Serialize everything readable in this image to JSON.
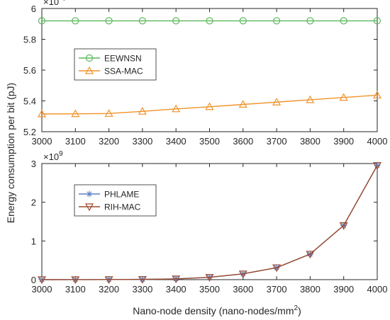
{
  "figure": {
    "ylabel": "Energy consumption per bit (pJ)",
    "xlabel_main": "Nano-node density (nano-nodes/mm",
    "xlabel_sup": "2",
    "xlabel_tail": ")"
  },
  "chart_data": [
    {
      "type": "line",
      "panel": "top",
      "x": [
        3000,
        3100,
        3200,
        3300,
        3400,
        3500,
        3600,
        3700,
        3800,
        3900,
        4000
      ],
      "xlim": [
        3000,
        4000
      ],
      "xticks": [
        "3000",
        "3100",
        "3200",
        "3300",
        "3400",
        "3500",
        "3600",
        "3700",
        "3800",
        "3900",
        "4000"
      ],
      "ylim": [
        5.2,
        6.0
      ],
      "yticks": [
        "5.2",
        "5.4",
        "5.6",
        "5.8",
        "6"
      ],
      "y_exponent_base": "×10",
      "y_exponent_power": "-4",
      "grid": false,
      "legend": "upper-left",
      "series": [
        {
          "name": "EEWNSN",
          "marker": "circle",
          "color": "#5cb85c",
          "values": [
            5.92,
            5.92,
            5.92,
            5.92,
            5.92,
            5.92,
            5.92,
            5.92,
            5.92,
            5.92,
            5.92
          ]
        },
        {
          "name": "SSA-MAC",
          "marker": "triangle-up",
          "color": "#f0922a",
          "values": [
            5.315,
            5.316,
            5.318,
            5.332,
            5.348,
            5.362,
            5.377,
            5.392,
            5.407,
            5.422,
            5.437
          ]
        }
      ]
    },
    {
      "type": "line",
      "panel": "bottom",
      "x": [
        3000,
        3100,
        3200,
        3300,
        3400,
        3500,
        3600,
        3700,
        3800,
        3900,
        4000
      ],
      "xlim": [
        3000,
        4000
      ],
      "xticks": [
        "3000",
        "3100",
        "3200",
        "3300",
        "3400",
        "3500",
        "3600",
        "3700",
        "3800",
        "3900",
        "4000"
      ],
      "ylim": [
        0,
        3
      ],
      "yticks": [
        "0",
        "1",
        "2",
        "3"
      ],
      "y_exponent_base": "×10",
      "y_exponent_power": "9",
      "grid": false,
      "legend": "upper-left",
      "series": [
        {
          "name": "PHLAME",
          "marker": "asterisk",
          "color": "#5b7fc7",
          "values": [
            0.0,
            0.001,
            0.003,
            0.007,
            0.02,
            0.06,
            0.15,
            0.31,
            0.66,
            1.4,
            2.95
          ]
        },
        {
          "name": "RIH-MAC",
          "marker": "triangle-down",
          "color": "#9c4a2e",
          "values": [
            0.0,
            0.001,
            0.003,
            0.007,
            0.02,
            0.06,
            0.15,
            0.31,
            0.66,
            1.4,
            2.95
          ]
        }
      ]
    }
  ]
}
